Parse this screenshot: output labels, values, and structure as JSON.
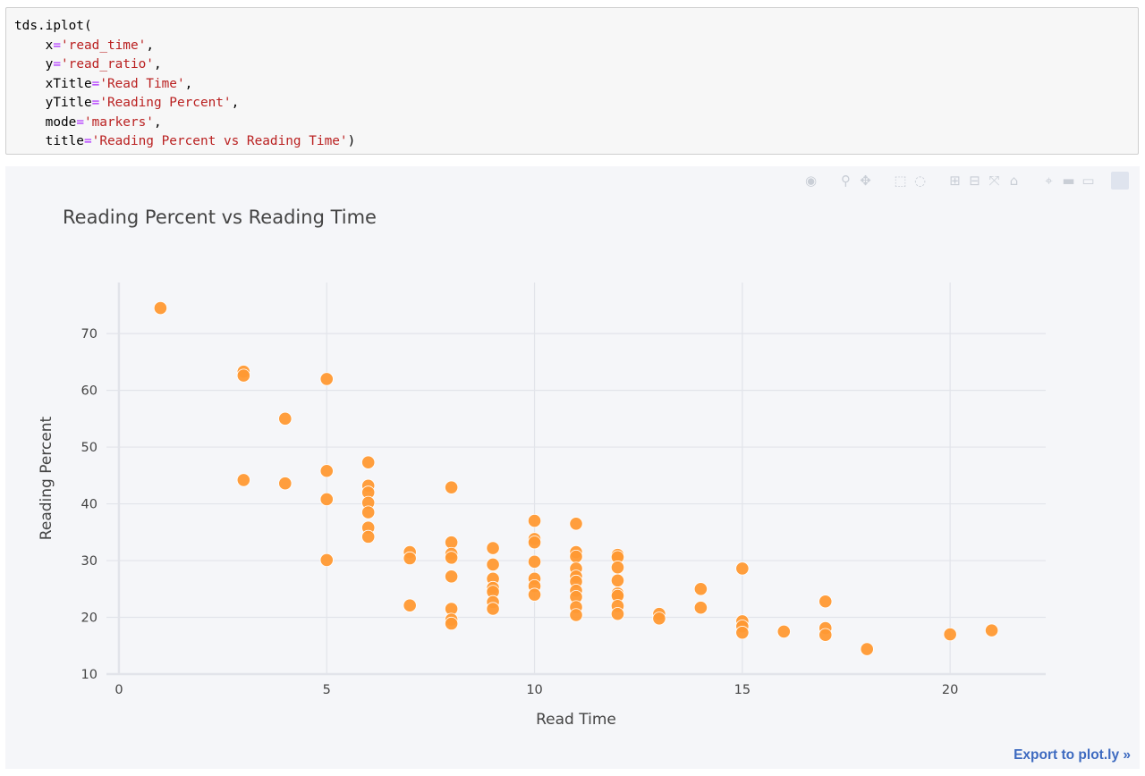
{
  "code_cell": {
    "lines": [
      [
        {
          "t": "tds.iplot("
        }
      ],
      [
        {
          "t": "    x"
        },
        {
          "t": "=",
          "c": "eq"
        },
        {
          "t": "'read_time'",
          "c": "str"
        },
        {
          "t": ","
        }
      ],
      [
        {
          "t": "    y"
        },
        {
          "t": "=",
          "c": "eq"
        },
        {
          "t": "'read_ratio'",
          "c": "str"
        },
        {
          "t": ","
        }
      ],
      [
        {
          "t": "    xTitle"
        },
        {
          "t": "=",
          "c": "eq"
        },
        {
          "t": "'Read Time'",
          "c": "str"
        },
        {
          "t": ","
        }
      ],
      [
        {
          "t": "    yTitle"
        },
        {
          "t": "=",
          "c": "eq"
        },
        {
          "t": "'Reading Percent'",
          "c": "str"
        },
        {
          "t": ","
        }
      ],
      [
        {
          "t": "    mode"
        },
        {
          "t": "=",
          "c": "eq"
        },
        {
          "t": "'markers'",
          "c": "str"
        },
        {
          "t": ","
        }
      ],
      [
        {
          "t": "    title"
        },
        {
          "t": "=",
          "c": "eq"
        },
        {
          "t": "'Reading Percent vs Reading Time'",
          "c": "str"
        },
        {
          "t": ")"
        }
      ]
    ]
  },
  "modebar": {
    "icons": [
      "camera-icon",
      "zoom-icon",
      "pan-icon",
      "box-select-icon",
      "lasso-select-icon",
      "zoom-in-icon",
      "zoom-out-icon",
      "autoscale-icon",
      "reset-axes-icon",
      "spike-lines-icon",
      "hover-closest-icon",
      "hover-compare-icon",
      "plotly-logo-icon"
    ]
  },
  "export_label": "Export to plot.ly »",
  "chart_data": {
    "type": "scatter",
    "title": "Reading Percent vs Reading Time",
    "xlabel": "Read Time",
    "ylabel": "Reading Percent",
    "xlim": [
      -0.3,
      22.3
    ],
    "ylim": [
      10,
      79
    ],
    "x_ticks": [
      0,
      5,
      10,
      15,
      20
    ],
    "y_ticks": [
      10,
      20,
      30,
      40,
      50,
      60,
      70
    ],
    "grid": true,
    "legend": "none",
    "marker_color": "#ff9933",
    "points": [
      [
        1,
        74.5
      ],
      [
        3,
        63.3
      ],
      [
        3,
        62.6
      ],
      [
        3,
        44.2
      ],
      [
        4,
        55.0
      ],
      [
        4,
        43.6
      ],
      [
        5,
        62.0
      ],
      [
        5,
        45.8
      ],
      [
        5,
        40.8
      ],
      [
        5,
        30.1
      ],
      [
        6,
        47.3
      ],
      [
        6,
        43.2
      ],
      [
        6,
        42.0
      ],
      [
        6,
        40.2
      ],
      [
        6,
        38.5
      ],
      [
        6,
        35.8
      ],
      [
        6,
        34.2
      ],
      [
        7,
        31.5
      ],
      [
        7,
        30.4
      ],
      [
        7,
        22.1
      ],
      [
        8,
        42.9
      ],
      [
        8,
        33.2
      ],
      [
        8,
        31.2
      ],
      [
        8,
        30.5
      ],
      [
        8,
        27.2
      ],
      [
        8,
        21.5
      ],
      [
        8,
        19.6
      ],
      [
        8,
        18.9
      ],
      [
        9,
        32.2
      ],
      [
        9,
        29.3
      ],
      [
        9,
        26.8
      ],
      [
        9,
        25.2
      ],
      [
        9,
        24.5
      ],
      [
        9,
        22.7
      ],
      [
        9,
        21.5
      ],
      [
        10,
        37.0
      ],
      [
        10,
        33.8
      ],
      [
        10,
        33.2
      ],
      [
        10,
        29.8
      ],
      [
        10,
        26.8
      ],
      [
        10,
        25.5
      ],
      [
        10,
        24.0
      ],
      [
        11,
        36.5
      ],
      [
        11,
        31.5
      ],
      [
        11,
        30.7
      ],
      [
        11,
        28.6
      ],
      [
        11,
        27.2
      ],
      [
        11,
        26.3
      ],
      [
        11,
        24.7
      ],
      [
        11,
        23.6
      ],
      [
        11,
        21.8
      ],
      [
        11,
        20.4
      ],
      [
        12,
        31.0
      ],
      [
        12,
        30.6
      ],
      [
        12,
        28.8
      ],
      [
        12,
        26.5
      ],
      [
        12,
        24.2
      ],
      [
        12,
        23.8
      ],
      [
        12,
        22.0
      ],
      [
        12,
        20.6
      ],
      [
        13,
        20.6
      ],
      [
        13,
        19.8
      ],
      [
        14,
        25.0
      ],
      [
        14,
        21.7
      ],
      [
        15,
        28.6
      ],
      [
        15,
        19.3
      ],
      [
        15,
        18.4
      ],
      [
        15,
        17.3
      ],
      [
        16,
        17.5
      ],
      [
        17,
        22.8
      ],
      [
        17,
        18.1
      ],
      [
        17,
        16.9
      ],
      [
        18,
        14.4
      ],
      [
        20,
        17.0
      ],
      [
        21,
        17.7
      ]
    ]
  }
}
